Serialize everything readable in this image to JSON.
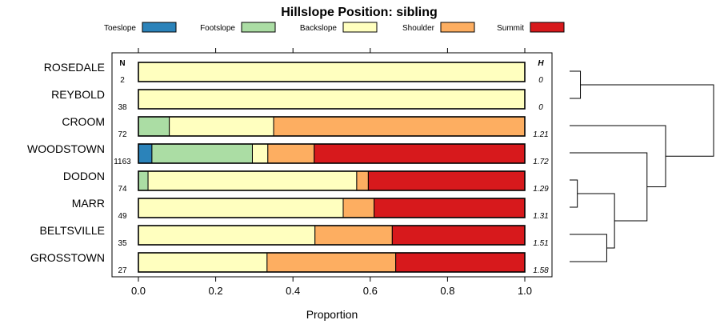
{
  "chart_data": {
    "type": "bar",
    "orientation": "horizontal",
    "stacked": true,
    "title": "Hillslope Position: sibling",
    "xlabel": "Proportion",
    "xlim": [
      0,
      1
    ],
    "x_ticks": [
      "0.0",
      "0.2",
      "0.4",
      "0.6",
      "0.8",
      "1.0"
    ],
    "n_header": "N",
    "h_header": "H",
    "legend_position": "top",
    "series": [
      {
        "name": "Toeslope",
        "color": "#2B83BA"
      },
      {
        "name": "Footslope",
        "color": "#ABDDA4"
      },
      {
        "name": "Backslope",
        "color": "#FFFFBF"
      },
      {
        "name": "Shoulder",
        "color": "#FDAE61"
      },
      {
        "name": "Summit",
        "color": "#D7191C"
      }
    ],
    "categories": [
      "ROSEDALE",
      "REYBOLD",
      "CROOM",
      "WOODSTOWN",
      "DODON",
      "MARR",
      "BELTSVILLE",
      "GROSSTOWN"
    ],
    "n": [
      "2",
      "38",
      "72",
      "1163",
      "74",
      "49",
      "35",
      "27"
    ],
    "h": [
      "0",
      "0",
      "1.21",
      "1.72",
      "1.29",
      "1.31",
      "1.51",
      "1.58"
    ],
    "values": [
      [
        0,
        0,
        1,
        0,
        0
      ],
      [
        0,
        0,
        1,
        0,
        0
      ],
      [
        0,
        0.08,
        0.27,
        0.65,
        0
      ],
      [
        0.035,
        0.26,
        0.04,
        0.12,
        0.545
      ],
      [
        0,
        0.025,
        0.54,
        0.03,
        0.405
      ],
      [
        0,
        0,
        0.53,
        0.08,
        0.39
      ],
      [
        0,
        0,
        0.457,
        0.2,
        0.343
      ],
      [
        0,
        0,
        0.333,
        0.333,
        0.334
      ]
    ],
    "dendrogram": {
      "merges": [
        {
          "left": "ROSEDALE",
          "right": "REYBOLD",
          "height": 0.07
        },
        {
          "left": "DODON",
          "right": "MARR",
          "height": 0.05
        },
        {
          "left": "BELTSVILLE",
          "right": "GROSSTOWN",
          "height": 0.24
        },
        {
          "left": "DODON+MARR",
          "right": "BELTSVILLE+GROSSTOWN",
          "height": 0.29
        },
        {
          "left": "WOODSTOWN",
          "right": "DODON+MARR+BELTSVILLE+GROSSTOWN",
          "height": 0.5
        },
        {
          "left": "CROOM",
          "right": "WOODSTOWN+others",
          "height": 0.62
        },
        {
          "left": "ROSEDALE+REYBOLD",
          "right": "CROOM+others",
          "height": 0.93
        }
      ]
    }
  }
}
